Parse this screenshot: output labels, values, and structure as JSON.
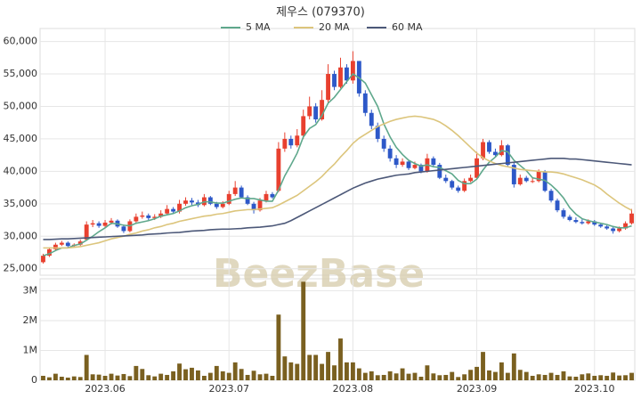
{
  "chart_data": {
    "type": "candlestick",
    "title": "제우스 (079370)",
    "watermark": "BeezBase",
    "categories": [
      null,
      null,
      null,
      null,
      null,
      null,
      null,
      null,
      null,
      null,
      "2023.06",
      null,
      null,
      null,
      null,
      null,
      null,
      null,
      null,
      null,
      null,
      null,
      null,
      null,
      null,
      null,
      null,
      null,
      null,
      null,
      "2023.07",
      null,
      null,
      null,
      null,
      null,
      null,
      null,
      null,
      null,
      null,
      null,
      null,
      null,
      null,
      null,
      null,
      null,
      null,
      null,
      "2023.08",
      null,
      null,
      null,
      null,
      null,
      null,
      null,
      null,
      null,
      null,
      null,
      null,
      null,
      null,
      null,
      null,
      null,
      null,
      null,
      "2023.09",
      null,
      null,
      null,
      null,
      null,
      null,
      null,
      null,
      null,
      null,
      null,
      null,
      null,
      null,
      null,
      null,
      null,
      null,
      "2023.10",
      null,
      null,
      null,
      null,
      null,
      null
    ],
    "open": [
      26000,
      27000,
      28000,
      28700,
      29000,
      28500,
      28700,
      29500,
      31800,
      32000,
      31600,
      32100,
      32400,
      31500,
      30800,
      32300,
      33000,
      33200,
      32800,
      33000,
      33500,
      34200,
      33800,
      35000,
      35500,
      35200,
      34800,
      36000,
      35000,
      34500,
      35000,
      36500,
      37500,
      36000,
      35000,
      34000,
      35500,
      36500,
      37000,
      43500,
      45000,
      44000,
      45500,
      48500,
      50000,
      48000,
      51000,
      55000,
      53000,
      56000,
      54000,
      57000,
      52000,
      49000,
      47000,
      45000,
      43500,
      42000,
      41000,
      41500,
      40500,
      41000,
      40000,
      42000,
      41000,
      39000,
      38500,
      37500,
      37000,
      38500,
      39000,
      42000,
      44500,
      43000,
      42500,
      44000,
      41000,
      38000,
      39000,
      38500,
      38500,
      40000,
      37000,
      35500,
      34000,
      33000,
      32500,
      32200,
      32000,
      32300,
      31800,
      31500,
      31200,
      30800,
      31200,
      32000
    ],
    "high": [
      27300,
      28300,
      29000,
      29300,
      29200,
      28900,
      29500,
      32300,
      32500,
      32300,
      32500,
      32800,
      32600,
      31800,
      32600,
      33500,
      33800,
      33500,
      33400,
      34000,
      34800,
      34500,
      35600,
      36000,
      35900,
      35600,
      36500,
      36200,
      35300,
      35400,
      37000,
      38500,
      37800,
      36300,
      35300,
      35900,
      37000,
      36800,
      44500,
      46000,
      45500,
      46500,
      49500,
      51500,
      50500,
      52500,
      56500,
      55500,
      57500,
      56500,
      58500,
      57000,
      52500,
      49500,
      47500,
      45500,
      44000,
      42500,
      42000,
      41800,
      41500,
      41200,
      42700,
      42300,
      41300,
      39500,
      38700,
      37800,
      38900,
      39500,
      43000,
      45000,
      44800,
      43500,
      44800,
      44200,
      41300,
      39500,
      39300,
      39000,
      40300,
      40200,
      37300,
      35800,
      34300,
      33300,
      32900,
      32600,
      32600,
      32500,
      32000,
      31700,
      31400,
      31500,
      32300,
      34200
    ],
    "low": [
      25800,
      26800,
      27700,
      28500,
      28300,
      28300,
      28500,
      29300,
      31400,
      31300,
      31300,
      31800,
      31300,
      30500,
      30600,
      32000,
      32700,
      32500,
      32500,
      32800,
      33300,
      33500,
      33500,
      34700,
      34800,
      34500,
      34600,
      34800,
      34200,
      34300,
      34800,
      36200,
      35800,
      34800,
      33500,
      33800,
      35200,
      35800,
      36800,
      43000,
      43500,
      43700,
      45000,
      48000,
      47500,
      47800,
      50500,
      52500,
      52800,
      53500,
      53500,
      51500,
      48500,
      46500,
      44500,
      43000,
      41500,
      40500,
      40700,
      40200,
      40300,
      39700,
      39800,
      40700,
      38800,
      38200,
      37200,
      36700,
      36800,
      38300,
      38700,
      41700,
      42700,
      42200,
      42300,
      40800,
      37500,
      37800,
      38300,
      38200,
      38300,
      36800,
      35200,
      33700,
      32700,
      32300,
      32000,
      31800,
      31800,
      31600,
      31300,
      31000,
      30400,
      30600,
      31000,
      31800
    ],
    "close": [
      27000,
      28000,
      28700,
      29000,
      28500,
      28700,
      29200,
      31800,
      32000,
      31600,
      32100,
      32400,
      31500,
      30800,
      32300,
      33000,
      33200,
      32800,
      33000,
      33500,
      34200,
      33800,
      35000,
      35500,
      35200,
      34800,
      36000,
      35000,
      34500,
      35000,
      36500,
      37500,
      36000,
      35000,
      34000,
      35500,
      36500,
      36000,
      43500,
      45000,
      44000,
      45500,
      48500,
      50000,
      48000,
      51000,
      55000,
      53000,
      56000,
      54000,
      57000,
      52000,
      49000,
      47000,
      45000,
      43500,
      42000,
      41000,
      41500,
      40500,
      41000,
      40000,
      42000,
      41000,
      39000,
      38500,
      37500,
      37000,
      38500,
      39000,
      42000,
      44500,
      43000,
      42500,
      44000,
      41000,
      38000,
      39000,
      38500,
      38500,
      40000,
      37000,
      35500,
      34000,
      33000,
      32500,
      32200,
      32000,
      32300,
      31800,
      31500,
      31200,
      30800,
      31200,
      32000,
      33500
    ],
    "up_color": "#e8402f",
    "down_color": "#2d58c8",
    "series": [
      {
        "name": "5 MA",
        "color": "#5fa88c",
        "values": [
          27000,
          27300,
          27800,
          28200,
          28200,
          28600,
          28800,
          29400,
          30000,
          30700,
          31300,
          32000,
          31900,
          31700,
          31600,
          32000,
          32200,
          32400,
          32700,
          33100,
          33300,
          33500,
          33900,
          34400,
          34700,
          34900,
          35300,
          35300,
          35100,
          35100,
          35400,
          35700,
          35900,
          35800,
          35800,
          35600,
          35400,
          35400,
          37100,
          39300,
          41000,
          42800,
          45300,
          46600,
          47200,
          48600,
          50500,
          51400,
          52600,
          53800,
          55000,
          54400,
          53600,
          51800,
          50000,
          47300,
          45300,
          43700,
          42600,
          41700,
          41200,
          40800,
          41000,
          40700,
          40600,
          40100,
          39600,
          38600,
          38100,
          38100,
          38800,
          40200,
          41400,
          42200,
          43200,
          43000,
          41700,
          40900,
          40100,
          39000,
          38800,
          38600,
          37900,
          37000,
          35900,
          34400,
          33400,
          32700,
          32400,
          32200,
          32000,
          31800,
          31500,
          31300,
          31300,
          31600
        ]
      },
      {
        "name": "20 MA",
        "color": "#dcc57c",
        "values": [
          28200,
          28200,
          28200,
          28200,
          28200,
          28300,
          28400,
          28600,
          28800,
          29000,
          29300,
          29600,
          29800,
          30000,
          30300,
          30500,
          30800,
          31000,
          31300,
          31500,
          31800,
          32000,
          32300,
          32500,
          32700,
          32900,
          33100,
          33200,
          33400,
          33500,
          33700,
          33900,
          34000,
          34100,
          34100,
          34200,
          34300,
          34400,
          34800,
          35300,
          35800,
          36300,
          37000,
          37700,
          38400,
          39200,
          40200,
          41100,
          42200,
          43200,
          44300,
          45100,
          45700,
          46300,
          46900,
          47300,
          47700,
          48000,
          48200,
          48400,
          48500,
          48400,
          48200,
          48000,
          47600,
          47000,
          46300,
          45500,
          44600,
          43700,
          42800,
          42100,
          41600,
          41200,
          40900,
          40700,
          40500,
          40300,
          40200,
          40100,
          40000,
          39900,
          39900,
          39800,
          39600,
          39300,
          39000,
          38700,
          38300,
          37900,
          37300,
          36500,
          35800,
          35100,
          34500,
          34000
        ]
      },
      {
        "name": "60 MA",
        "color": "#4c5878",
        "values": [
          29500,
          29500,
          29550,
          29600,
          29600,
          29650,
          29700,
          29750,
          29800,
          29850,
          29900,
          29950,
          30000,
          30050,
          30100,
          30150,
          30200,
          30300,
          30350,
          30400,
          30500,
          30550,
          30600,
          30700,
          30800,
          30850,
          30900,
          31000,
          31050,
          31100,
          31100,
          31150,
          31200,
          31300,
          31350,
          31400,
          31500,
          31600,
          31800,
          32000,
          32400,
          32900,
          33400,
          33900,
          34400,
          34900,
          35400,
          35900,
          36400,
          36900,
          37400,
          37800,
          38200,
          38500,
          38800,
          39000,
          39200,
          39400,
          39500,
          39600,
          39800,
          39900,
          40000,
          40100,
          40200,
          40300,
          40400,
          40500,
          40600,
          40700,
          40800,
          40900,
          41000,
          41100,
          41200,
          41300,
          41400,
          41500,
          41600,
          41700,
          41800,
          41900,
          42000,
          42000,
          42000,
          41900,
          41900,
          41800,
          41700,
          41600,
          41500,
          41400,
          41300,
          41200,
          41100,
          41000
        ]
      }
    ],
    "ylim": [
      24000,
      62000
    ],
    "yticks": [
      {
        "value": 25000,
        "label": "25,000"
      },
      {
        "value": 30000,
        "label": "30,000"
      },
      {
        "value": 35000,
        "label": "35,000"
      },
      {
        "value": 40000,
        "label": "40,000"
      },
      {
        "value": 45000,
        "label": "45,000"
      },
      {
        "value": 50000,
        "label": "50,000"
      },
      {
        "value": 55000,
        "label": "55,000"
      },
      {
        "value": 60000,
        "label": "60,000"
      }
    ],
    "grid": true,
    "volume": {
      "color": "#7a6020",
      "ylim": [
        0,
        3400000
      ],
      "yticks": [
        0,
        {
          "value": 1000000,
          "label": "1M"
        },
        {
          "value": 2000000,
          "label": "2M"
        },
        {
          "value": 3000000,
          "label": "3M"
        }
      ],
      "values": [
        150000,
        100000,
        220000,
        120000,
        90000,
        130000,
        110000,
        850000,
        200000,
        190000,
        150000,
        220000,
        160000,
        210000,
        140000,
        480000,
        380000,
        170000,
        130000,
        220000,
        180000,
        300000,
        560000,
        370000,
        420000,
        330000,
        150000,
        250000,
        480000,
        300000,
        250000,
        600000,
        380000,
        180000,
        320000,
        200000,
        220000,
        150000,
        2200000,
        800000,
        600000,
        550000,
        3300000,
        850000,
        850000,
        550000,
        950000,
        500000,
        1400000,
        600000,
        600000,
        400000,
        250000,
        300000,
        170000,
        180000,
        300000,
        230000,
        400000,
        220000,
        250000,
        120000,
        500000,
        230000,
        170000,
        180000,
        280000,
        110000,
        200000,
        350000,
        450000,
        950000,
        330000,
        280000,
        600000,
        250000,
        900000,
        350000,
        280000,
        150000,
        200000,
        180000,
        250000,
        180000,
        300000,
        130000,
        120000,
        200000,
        230000,
        150000,
        170000,
        150000,
        260000,
        160000,
        170000,
        250000
      ]
    }
  }
}
